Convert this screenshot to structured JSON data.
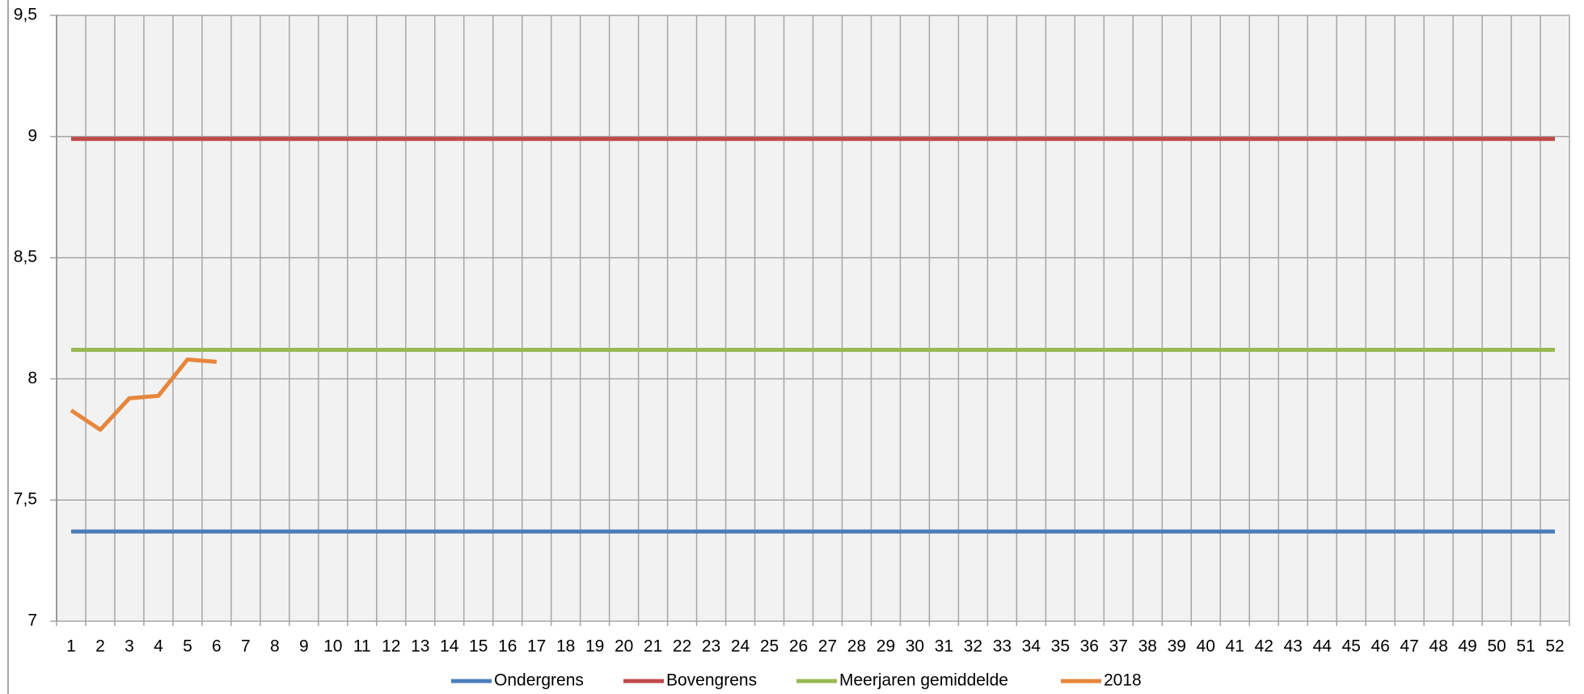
{
  "chart_data": {
    "type": "line",
    "categories": [
      "1",
      "2",
      "3",
      "4",
      "5",
      "6",
      "7",
      "8",
      "9",
      "10",
      "11",
      "12",
      "13",
      "14",
      "15",
      "16",
      "17",
      "18",
      "19",
      "20",
      "21",
      "22",
      "23",
      "24",
      "25",
      "26",
      "27",
      "28",
      "29",
      "30",
      "31",
      "32",
      "33",
      "34",
      "35",
      "36",
      "37",
      "38",
      "39",
      "40",
      "41",
      "42",
      "43",
      "44",
      "45",
      "46",
      "47",
      "48",
      "49",
      "50",
      "51",
      "52"
    ],
    "series": [
      {
        "name": "Ondergrens",
        "color": "#4a7ebb",
        "values": [
          7.37,
          7.37,
          7.37,
          7.37,
          7.37,
          7.37,
          7.37,
          7.37,
          7.37,
          7.37,
          7.37,
          7.37,
          7.37,
          7.37,
          7.37,
          7.37,
          7.37,
          7.37,
          7.37,
          7.37,
          7.37,
          7.37,
          7.37,
          7.37,
          7.37,
          7.37,
          7.37,
          7.37,
          7.37,
          7.37,
          7.37,
          7.37,
          7.37,
          7.37,
          7.37,
          7.37,
          7.37,
          7.37,
          7.37,
          7.37,
          7.37,
          7.37,
          7.37,
          7.37,
          7.37,
          7.37,
          7.37,
          7.37,
          7.37,
          7.37,
          7.37,
          7.37
        ]
      },
      {
        "name": "Bovengrens",
        "color": "#be4b48",
        "values": [
          8.99,
          8.99,
          8.99,
          8.99,
          8.99,
          8.99,
          8.99,
          8.99,
          8.99,
          8.99,
          8.99,
          8.99,
          8.99,
          8.99,
          8.99,
          8.99,
          8.99,
          8.99,
          8.99,
          8.99,
          8.99,
          8.99,
          8.99,
          8.99,
          8.99,
          8.99,
          8.99,
          8.99,
          8.99,
          8.99,
          8.99,
          8.99,
          8.99,
          8.99,
          8.99,
          8.99,
          8.99,
          8.99,
          8.99,
          8.99,
          8.99,
          8.99,
          8.99,
          8.99,
          8.99,
          8.99,
          8.99,
          8.99,
          8.99,
          8.99,
          8.99,
          8.99
        ]
      },
      {
        "name": "Meerjaren gemiddelde",
        "color": "#98b954",
        "values": [
          8.12,
          8.12,
          8.12,
          8.12,
          8.12,
          8.12,
          8.12,
          8.12,
          8.12,
          8.12,
          8.12,
          8.12,
          8.12,
          8.12,
          8.12,
          8.12,
          8.12,
          8.12,
          8.12,
          8.12,
          8.12,
          8.12,
          8.12,
          8.12,
          8.12,
          8.12,
          8.12,
          8.12,
          8.12,
          8.12,
          8.12,
          8.12,
          8.12,
          8.12,
          8.12,
          8.12,
          8.12,
          8.12,
          8.12,
          8.12,
          8.12,
          8.12,
          8.12,
          8.12,
          8.12,
          8.12,
          8.12,
          8.12,
          8.12,
          8.12,
          8.12,
          8.12
        ]
      },
      {
        "name": "2018",
        "color": "#e6863c",
        "values": [
          7.87,
          7.79,
          7.92,
          7.93,
          8.08,
          8.07,
          null,
          null,
          null,
          null,
          null,
          null,
          null,
          null,
          null,
          null,
          null,
          null,
          null,
          null,
          null,
          null,
          null,
          null,
          null,
          null,
          null,
          null,
          null,
          null,
          null,
          null,
          null,
          null,
          null,
          null,
          null,
          null,
          null,
          null,
          null,
          null,
          null,
          null,
          null,
          null,
          null,
          null,
          null,
          null,
          null,
          null
        ]
      }
    ],
    "ylim": [
      7,
      9.5
    ],
    "yticks": [
      7,
      {
        "value": 7.5,
        "label": "7,5"
      },
      8,
      {
        "value": 8.5,
        "label": "8,5"
      },
      9,
      {
        "value": 9.5,
        "label": "9,5"
      }
    ],
    "grid": true,
    "legend": "bottom"
  }
}
